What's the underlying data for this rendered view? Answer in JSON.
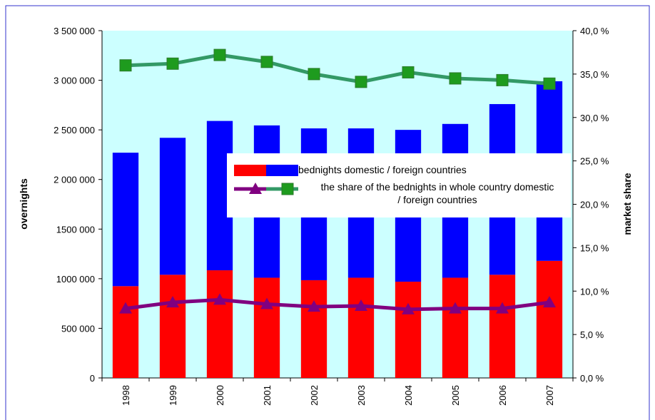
{
  "chart_data": {
    "type": "bar",
    "stacked": true,
    "categories": [
      "1998",
      "1999",
      "2000",
      "2001",
      "2002",
      "2003",
      "2004",
      "2005",
      "2006",
      "2007"
    ],
    "series": [
      {
        "color": "#ff0000",
        "values": [
          925000,
          1040000,
          1085000,
          1010000,
          985000,
          1010000,
          970000,
          1010000,
          1040000,
          1180000
        ]
      },
      {
        "color": "#0000ff",
        "values": [
          1345000,
          1380000,
          1505000,
          1535000,
          1530000,
          1505000,
          1530000,
          1550000,
          1720000,
          1810000
        ]
      },
      {
        "type": "line",
        "axis": "y2",
        "marker": "triangle",
        "color": "#800080",
        "values": [
          8.0,
          8.7,
          9.0,
          8.5,
          8.2,
          8.3,
          7.9,
          8.0,
          8.0,
          8.7
        ]
      },
      {
        "type": "line",
        "axis": "y2",
        "marker": "square",
        "color": "#339966",
        "marker_color": "#1e9b1e",
        "values": [
          36.0,
          36.2,
          37.2,
          36.4,
          35.0,
          34.1,
          35.2,
          34.5,
          34.3,
          33.9
        ]
      }
    ],
    "ylabel": "overnights",
    "y2label": "market share",
    "ylim": [
      0,
      3500000
    ],
    "yticks": [
      0,
      {
        "value": 500000,
        "label": "500 000"
      },
      {
        "value": 1000000,
        "label": "1000 000"
      },
      {
        "value": 1500000,
        "label": "1500 000"
      },
      {
        "value": 2000000,
        "label": "2 000 000"
      },
      {
        "value": 2500000,
        "label": "2 500 000"
      },
      {
        "value": 3000000,
        "label": "3 000 000"
      },
      {
        "value": 3500000,
        "label": "3 500 000"
      }
    ],
    "y2lim": [
      0,
      40
    ],
    "y2ticks": [
      {
        "value": 0,
        "label": "0,0 %"
      },
      {
        "value": 5,
        "label": "5,0 %"
      },
      {
        "value": 10,
        "label": "10,0 %"
      },
      {
        "value": 15,
        "label": "15,0 %"
      },
      {
        "value": 20,
        "label": "20,0 %"
      },
      {
        "value": 25,
        "label": "25,0 %"
      },
      {
        "value": 30,
        "label": "30,0 %"
      },
      {
        "value": 35,
        "label": "35,0 %"
      },
      {
        "value": 40,
        "label": "40,0 %"
      }
    ],
    "legend": [
      "bednights domestic / foreign countries",
      "the share of the bednights in whole country domestic / foreign countries"
    ],
    "plot_background": "#ccffff"
  }
}
